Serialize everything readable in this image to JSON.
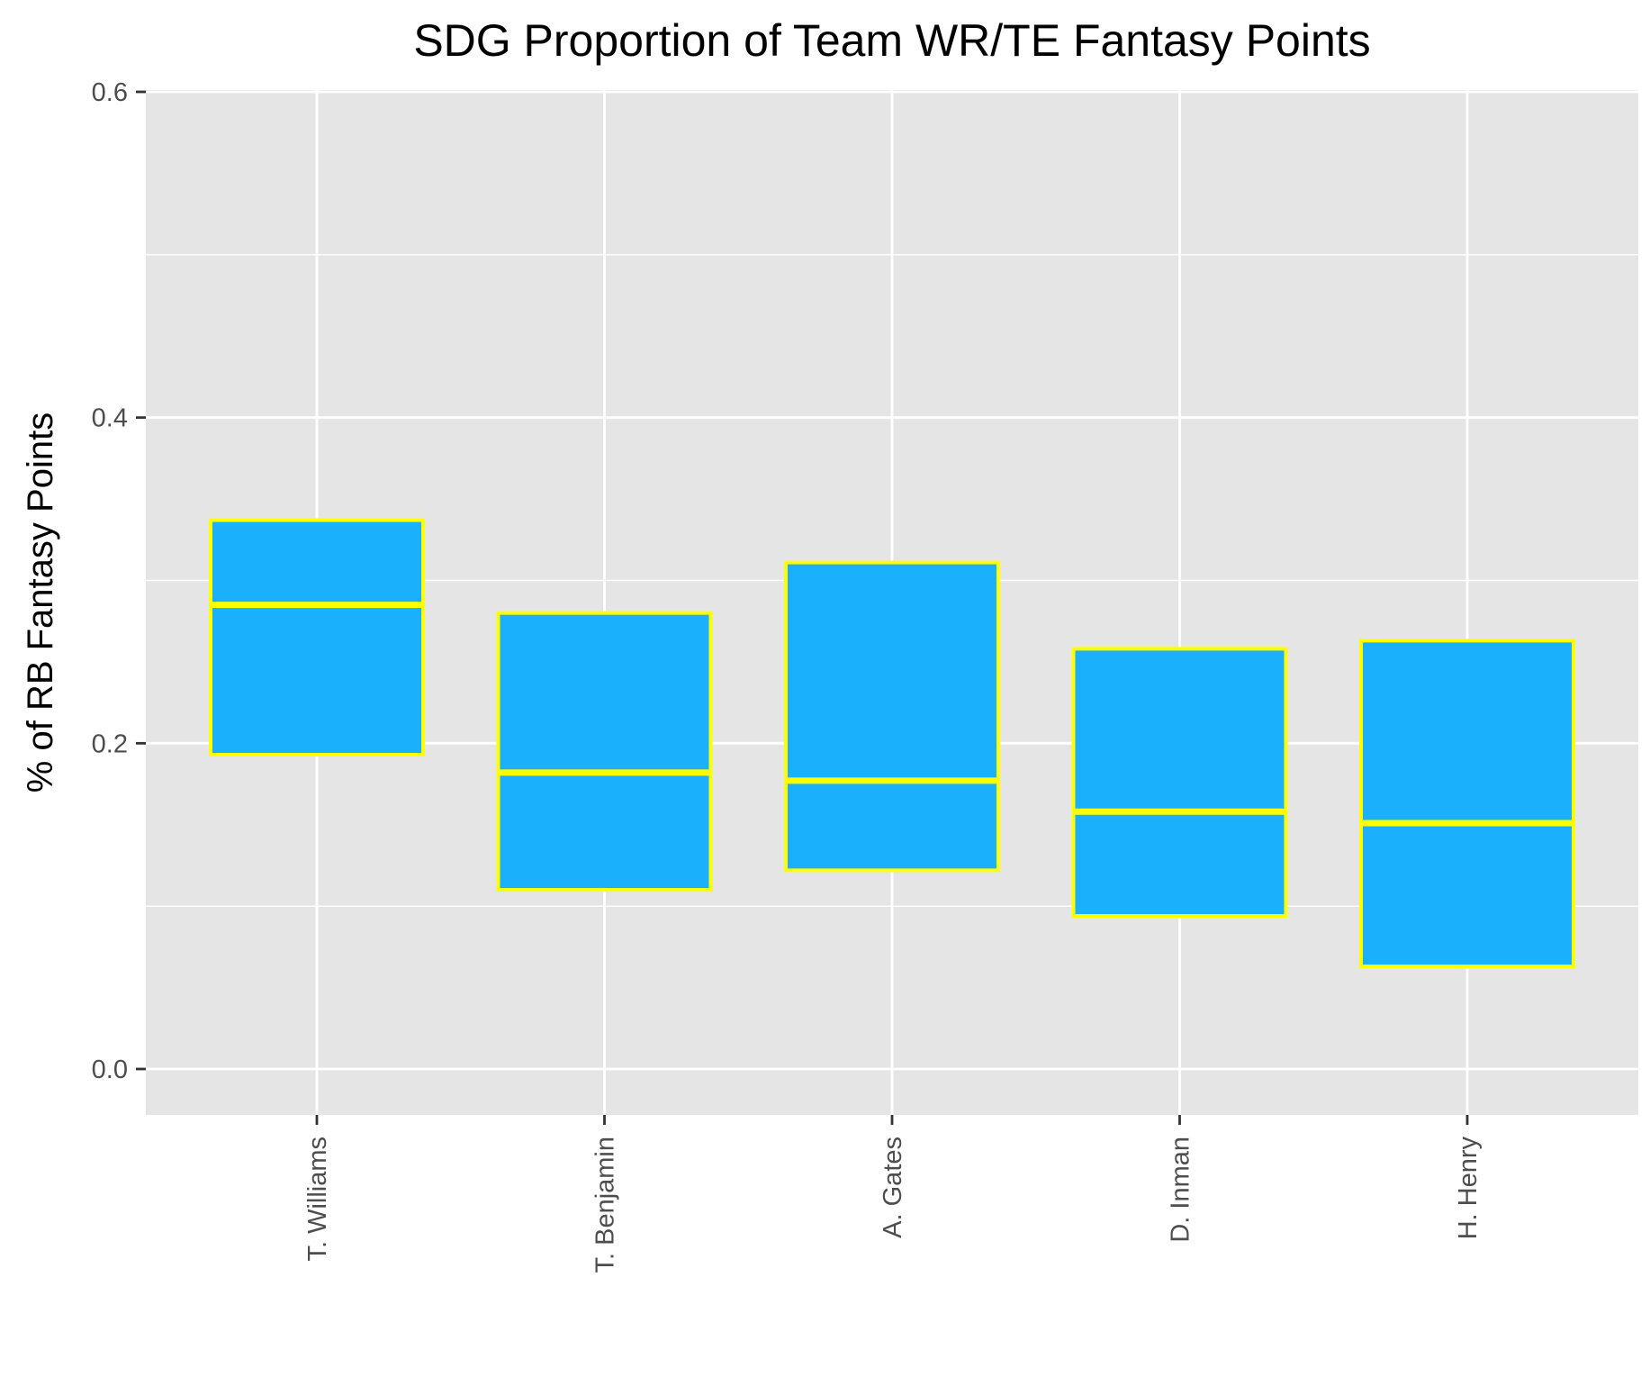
{
  "chart_data": {
    "type": "boxplot",
    "title": "SDG Proportion of Team WR/TE Fantasy Points",
    "xlabel": "",
    "ylabel": "% of RB Fantasy Points",
    "ylim": [
      -0.028,
      0.6
    ],
    "y_ticks": [
      "0.0",
      "0.2",
      "0.4",
      "0.6"
    ],
    "y_tick_values": [
      0.0,
      0.2,
      0.4,
      0.6
    ],
    "y_minor_gridlines": [
      0.1,
      0.3,
      0.5
    ],
    "grid": true,
    "categories": [
      "T. Williams",
      "T. Benjamin",
      "A. Gates",
      "D. Inman",
      "H. Henry"
    ],
    "boxes": [
      {
        "name": "T. Williams",
        "q1": 0.193,
        "median": 0.285,
        "q3": 0.337
      },
      {
        "name": "T. Benjamin",
        "q1": 0.11,
        "median": 0.182,
        "q3": 0.28
      },
      {
        "name": "A. Gates",
        "q1": 0.122,
        "median": 0.177,
        "q3": 0.311
      },
      {
        "name": "D. Inman",
        "q1": 0.094,
        "median": 0.158,
        "q3": 0.258
      },
      {
        "name": "H. Henry",
        "q1": 0.063,
        "median": 0.151,
        "q3": 0.263
      }
    ],
    "colors": {
      "panel_background": "#e5e5e5",
      "grid": "#ffffff",
      "box_fill": "#1ab0fc",
      "box_outline": "#ffff00",
      "tick_mark": "#333333"
    }
  }
}
